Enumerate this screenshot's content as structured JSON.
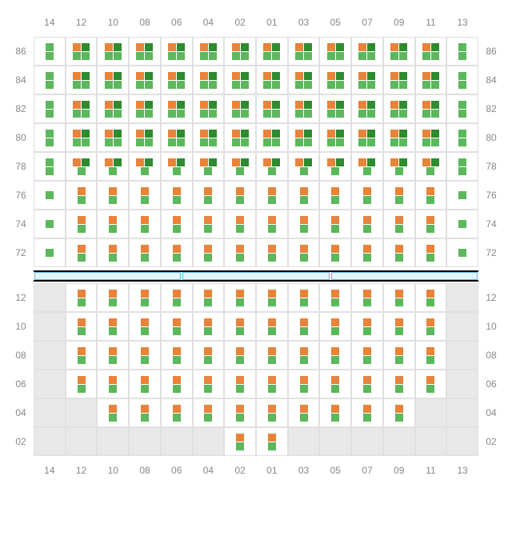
{
  "colors": {
    "green": "#5cb85c",
    "darkgreen": "#2e8b2e",
    "orange": "#e8833a",
    "grid": "#e0e0e0",
    "mask": "#e8e8e8",
    "label": "#888888",
    "bluebar_fill": "#e0f3ff",
    "bluebar_border": "#66b8e8"
  },
  "columns": [
    "14",
    "12",
    "10",
    "08",
    "06",
    "04",
    "02",
    "01",
    "03",
    "05",
    "07",
    "09",
    "11",
    "13"
  ],
  "top": {
    "rows": [
      "86",
      "84",
      "82",
      "80",
      "78",
      "76",
      "74",
      "72"
    ],
    "patterns": {
      "edge_top": [
        [
          "green"
        ],
        [
          "green"
        ]
      ],
      "edge_low": [
        [
          "green"
        ]
      ],
      "full4": [
        [
          "orange",
          "darkgreen"
        ],
        [
          "green",
          "green"
        ]
      ],
      "full3": [
        [
          "orange",
          "darkgreen"
        ],
        [
          "green"
        ]
      ],
      "stack2": [
        [
          "orange"
        ],
        [
          "green"
        ]
      ]
    },
    "layout": [
      [
        "edge_top",
        "full4",
        "full4",
        "full4",
        "full4",
        "full4",
        "full4",
        "full4",
        "full4",
        "full4",
        "full4",
        "full4",
        "full4",
        "edge_top"
      ],
      [
        "edge_top",
        "full4",
        "full4",
        "full4",
        "full4",
        "full4",
        "full4",
        "full4",
        "full4",
        "full4",
        "full4",
        "full4",
        "full4",
        "edge_top"
      ],
      [
        "edge_top",
        "full4",
        "full4",
        "full4",
        "full4",
        "full4",
        "full4",
        "full4",
        "full4",
        "full4",
        "full4",
        "full4",
        "full4",
        "edge_top"
      ],
      [
        "edge_top",
        "full4",
        "full4",
        "full4",
        "full4",
        "full4",
        "full4",
        "full4",
        "full4",
        "full4",
        "full4",
        "full4",
        "full4",
        "edge_top"
      ],
      [
        "edge_top",
        "full3",
        "full3",
        "full3",
        "full3",
        "full3",
        "full3",
        "full3",
        "full3",
        "full3",
        "full3",
        "full3",
        "full3",
        "edge_top"
      ],
      [
        "edge_low",
        "stack2",
        "stack2",
        "stack2",
        "stack2",
        "stack2",
        "stack2",
        "stack2",
        "stack2",
        "stack2",
        "stack2",
        "stack2",
        "stack2",
        "edge_low"
      ],
      [
        "edge_low",
        "stack2",
        "stack2",
        "stack2",
        "stack2",
        "stack2",
        "stack2",
        "stack2",
        "stack2",
        "stack2",
        "stack2",
        "stack2",
        "stack2",
        "edge_low"
      ],
      [
        "edge_low",
        "stack2",
        "stack2",
        "stack2",
        "stack2",
        "stack2",
        "stack2",
        "stack2",
        "stack2",
        "stack2",
        "stack2",
        "stack2",
        "stack2",
        "edge_low"
      ]
    ]
  },
  "bottom": {
    "rows": [
      "12",
      "10",
      "08",
      "06",
      "04",
      "02"
    ],
    "pattern": [
      [
        "orange"
      ],
      [
        "green"
      ]
    ],
    "mask": [
      [
        1,
        0,
        0,
        0,
        0,
        0,
        0,
        0,
        0,
        0,
        0,
        0,
        0,
        1
      ],
      [
        1,
        0,
        0,
        0,
        0,
        0,
        0,
        0,
        0,
        0,
        0,
        0,
        0,
        1
      ],
      [
        1,
        0,
        0,
        0,
        0,
        0,
        0,
        0,
        0,
        0,
        0,
        0,
        0,
        1
      ],
      [
        1,
        0,
        0,
        0,
        0,
        0,
        0,
        0,
        0,
        0,
        0,
        0,
        0,
        1
      ],
      [
        1,
        1,
        0,
        0,
        0,
        0,
        0,
        0,
        0,
        0,
        0,
        0,
        1,
        1
      ],
      [
        1,
        1,
        1,
        1,
        1,
        1,
        0,
        0,
        1,
        1,
        1,
        1,
        1,
        1
      ]
    ]
  }
}
